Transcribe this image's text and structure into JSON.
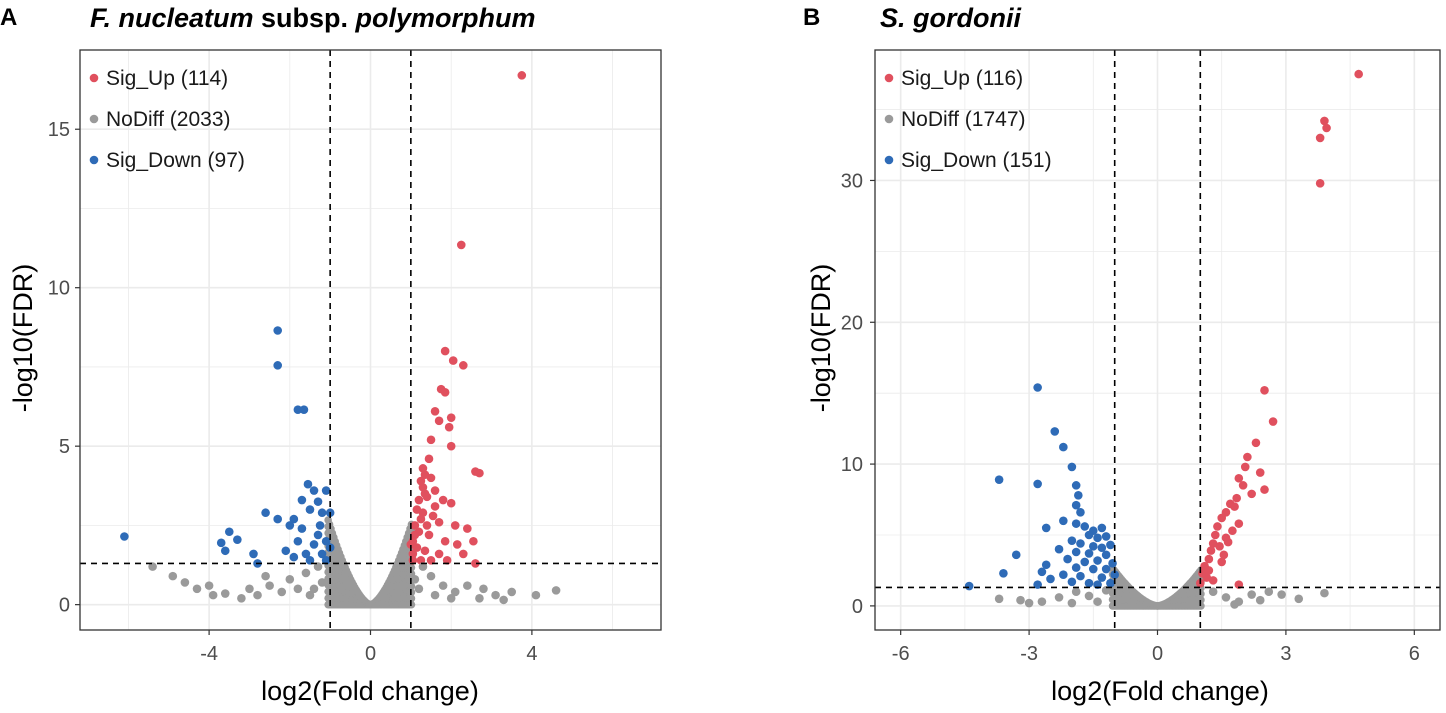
{
  "colors": {
    "up": "#E0505E",
    "nodiff": "#9A9A9A",
    "down": "#2E6BB7",
    "grid": "#EBEBEB"
  },
  "panels": [
    {
      "letter": "A",
      "title_parts": [
        {
          "text": "F. nucleatum",
          "italic": true
        },
        {
          "text": " subsp. ",
          "italic": false
        },
        {
          "text": "polymorphum",
          "italic": true
        }
      ]
    },
    {
      "letter": "B",
      "title_parts": [
        {
          "text": "S. gordonii",
          "italic": true
        }
      ]
    }
  ],
  "chart_data": [
    {
      "type": "scatter",
      "title": "F. nucleatum subsp. polymorphum",
      "xlabel": "log2(Fold change)",
      "ylabel": "-log10(FDR)",
      "xlim": [
        -7.2,
        7.2
      ],
      "ylim": [
        -0.8,
        17.5
      ],
      "xticks": [
        -4,
        0,
        4
      ],
      "yticks": [
        0,
        5,
        10,
        15
      ],
      "x_thresholds": [
        -1,
        1
      ],
      "y_threshold": 1.3,
      "legend": [
        {
          "key": "up",
          "label": "Sig_Up (114)"
        },
        {
          "key": "nodiff",
          "label": "NoDiff (2033)"
        },
        {
          "key": "down",
          "label": "Sig_Down (97)"
        }
      ],
      "series": [
        {
          "name": "Sig_Up",
          "key": "up",
          "points": [
            [
              3.75,
              16.7
            ],
            [
              2.25,
              11.35
            ],
            [
              1.85,
              8.0
            ],
            [
              2.05,
              7.7
            ],
            [
              2.3,
              7.55
            ],
            [
              1.75,
              6.8
            ],
            [
              1.85,
              6.7
            ],
            [
              1.6,
              6.1
            ],
            [
              1.7,
              5.8
            ],
            [
              2.0,
              5.9
            ],
            [
              1.95,
              5.6
            ],
            [
              1.5,
              5.2
            ],
            [
              2.0,
              5.0
            ],
            [
              1.45,
              4.6
            ],
            [
              2.6,
              4.2
            ],
            [
              2.7,
              4.15
            ],
            [
              1.3,
              4.3
            ],
            [
              1.35,
              4.1
            ],
            [
              1.5,
              4.0
            ],
            [
              1.25,
              3.9
            ],
            [
              1.3,
              3.7
            ],
            [
              1.6,
              3.6
            ],
            [
              1.4,
              3.4
            ],
            [
              1.8,
              3.3
            ],
            [
              2.0,
              3.2
            ],
            [
              1.2,
              3.3
            ],
            [
              1.15,
              3.0
            ],
            [
              1.3,
              2.9
            ],
            [
              1.55,
              2.8
            ],
            [
              1.7,
              2.6
            ],
            [
              2.1,
              2.5
            ],
            [
              2.4,
              2.4
            ],
            [
              1.1,
              2.5
            ],
            [
              1.2,
              2.3
            ],
            [
              1.45,
              2.2
            ],
            [
              1.85,
              2.0
            ],
            [
              2.15,
              1.9
            ],
            [
              2.55,
              2.0
            ],
            [
              1.05,
              2.0
            ],
            [
              1.15,
              1.8
            ],
            [
              1.35,
              1.7
            ],
            [
              1.7,
              1.6
            ],
            [
              2.3,
              1.6
            ],
            [
              2.6,
              1.3
            ],
            [
              1.05,
              1.6
            ],
            [
              1.25,
              1.4
            ],
            [
              1.5,
              1.4
            ],
            [
              1.9,
              1.4
            ],
            [
              1.0,
              1.9
            ],
            [
              1.1,
              2.2
            ],
            [
              1.4,
              2.5
            ],
            [
              1.6,
              3.1
            ],
            [
              1.35,
              3.5
            ],
            [
              1.25,
              2.7
            ],
            [
              1.05,
              1.4
            ]
          ]
        },
        {
          "name": "NoDiff",
          "key": "nodiff",
          "points": [
            [
              -5.4,
              1.2
            ],
            [
              -4.9,
              0.9
            ],
            [
              -4.6,
              0.7
            ],
            [
              -4.3,
              0.5
            ],
            [
              -3.9,
              0.3
            ],
            [
              -3.6,
              0.35
            ],
            [
              -3.2,
              0.2
            ],
            [
              -2.8,
              0.3
            ],
            [
              -2.5,
              0.6
            ],
            [
              -2.2,
              0.4
            ],
            [
              -2.0,
              0.8
            ],
            [
              -1.8,
              0.5
            ],
            [
              -1.6,
              1.0
            ],
            [
              -1.5,
              0.3
            ],
            [
              -1.3,
              1.2
            ],
            [
              -1.2,
              0.7
            ],
            [
              -2.6,
              0.9
            ],
            [
              -3.0,
              0.5
            ],
            [
              -4.0,
              0.6
            ],
            [
              -1.4,
              0.5
            ],
            [
              1.3,
              1.2
            ],
            [
              1.5,
              0.9
            ],
            [
              1.8,
              0.6
            ],
            [
              2.1,
              0.4
            ],
            [
              2.4,
              0.6
            ],
            [
              2.8,
              0.5
            ],
            [
              3.1,
              0.3
            ],
            [
              3.5,
              0.4
            ],
            [
              4.1,
              0.3
            ],
            [
              4.6,
              0.45
            ],
            [
              2.7,
              0.2
            ],
            [
              2.0,
              0.2
            ],
            [
              1.6,
              0.3
            ],
            [
              1.2,
              0.5
            ],
            [
              3.3,
              0.15
            ],
            [
              1.1,
              0.8
            ]
          ]
        },
        {
          "name": "Sig_Down",
          "key": "down",
          "points": [
            [
              -6.1,
              2.15
            ],
            [
              -2.3,
              8.65
            ],
            [
              -2.3,
              7.55
            ],
            [
              -1.8,
              6.15
            ],
            [
              -1.65,
              6.15
            ],
            [
              -1.55,
              3.8
            ],
            [
              -1.4,
              3.6
            ],
            [
              -1.1,
              3.6
            ],
            [
              -1.7,
              3.3
            ],
            [
              -1.3,
              3.25
            ],
            [
              -1.5,
              3.0
            ],
            [
              -2.6,
              2.9
            ],
            [
              -2.3,
              2.7
            ],
            [
              -1.9,
              2.7
            ],
            [
              -1.2,
              2.9
            ],
            [
              -1.0,
              2.9
            ],
            [
              -3.5,
              2.3
            ],
            [
              -3.3,
              2.05
            ],
            [
              -3.7,
              1.95
            ],
            [
              -3.6,
              1.7
            ],
            [
              -2.9,
              1.6
            ],
            [
              -1.8,
              2.0
            ],
            [
              -1.4,
              1.9
            ],
            [
              -1.1,
              2.0
            ],
            [
              -2.1,
              1.7
            ],
            [
              -1.6,
              1.6
            ],
            [
              -1.2,
              1.6
            ],
            [
              -1.9,
              1.5
            ],
            [
              -1.5,
              1.4
            ],
            [
              -1.1,
              1.4
            ],
            [
              -2.8,
              1.3
            ],
            [
              -1.3,
              2.2
            ],
            [
              -1.0,
              1.8
            ],
            [
              -1.7,
              2.4
            ],
            [
              -2.0,
              2.5
            ],
            [
              -1.25,
              2.5
            ]
          ]
        }
      ]
    },
    {
      "type": "scatter",
      "title": "S. gordonii",
      "xlabel": "log2(Fold change)",
      "ylabel": "-log10(FDR)",
      "xlim": [
        -6.6,
        6.6
      ],
      "ylim": [
        -1.7,
        39.2
      ],
      "xticks": [
        -6,
        -3,
        0,
        3,
        6
      ],
      "yticks": [
        0,
        10,
        20,
        30
      ],
      "x_thresholds": [
        -1,
        1
      ],
      "y_threshold": 1.3,
      "legend": [
        {
          "key": "up",
          "label": "Sig_Up (116)"
        },
        {
          "key": "nodiff",
          "label": "NoDiff (1747)"
        },
        {
          "key": "down",
          "label": "Sig_Down (151)"
        }
      ],
      "series": [
        {
          "name": "Sig_Up",
          "key": "up",
          "points": [
            [
              4.7,
              37.5
            ],
            [
              3.9,
              34.2
            ],
            [
              3.95,
              33.7
            ],
            [
              3.8,
              33.0
            ],
            [
              3.8,
              29.8
            ],
            [
              2.5,
              15.2
            ],
            [
              2.7,
              13.0
            ],
            [
              2.3,
              11.5
            ],
            [
              2.1,
              10.5
            ],
            [
              2.05,
              9.8
            ],
            [
              2.4,
              9.4
            ],
            [
              1.9,
              9.0
            ],
            [
              2.0,
              8.5
            ],
            [
              2.5,
              8.2
            ],
            [
              2.2,
              7.9
            ],
            [
              1.85,
              7.6
            ],
            [
              1.7,
              7.2
            ],
            [
              1.8,
              7.0
            ],
            [
              1.6,
              6.6
            ],
            [
              1.5,
              6.2
            ],
            [
              1.9,
              5.8
            ],
            [
              1.4,
              5.6
            ],
            [
              1.35,
              5.0
            ],
            [
              1.6,
              4.8
            ],
            [
              1.3,
              4.4
            ],
            [
              1.25,
              3.9
            ],
            [
              1.55,
              3.6
            ],
            [
              1.2,
              3.3
            ],
            [
              1.1,
              2.8
            ],
            [
              1.05,
              2.3
            ],
            [
              1.15,
              2.0
            ],
            [
              1.3,
              1.8
            ],
            [
              1.9,
              1.5
            ],
            [
              1.45,
              4.2
            ],
            [
              1.75,
              5.3
            ],
            [
              1.0,
              1.6
            ],
            [
              1.2,
              2.5
            ],
            [
              1.5,
              3.1
            ],
            [
              1.65,
              4.5
            ]
          ]
        },
        {
          "name": "NoDiff",
          "key": "nodiff",
          "points": [
            [
              -3.7,
              0.5
            ],
            [
              -3.2,
              0.4
            ],
            [
              -2.7,
              0.3
            ],
            [
              -2.3,
              0.6
            ],
            [
              -1.9,
              1.0
            ],
            [
              -1.6,
              0.7
            ],
            [
              -1.4,
              0.3
            ],
            [
              -1.2,
              1.1
            ],
            [
              -2.0,
              0.2
            ],
            [
              -3.0,
              0.2
            ],
            [
              1.3,
              1.0
            ],
            [
              1.6,
              0.6
            ],
            [
              1.9,
              0.3
            ],
            [
              2.2,
              0.8
            ],
            [
              2.6,
              1.0
            ],
            [
              2.9,
              0.8
            ],
            [
              3.3,
              0.5
            ],
            [
              3.9,
              0.9
            ],
            [
              1.8,
              0.1
            ],
            [
              2.4,
              0.4
            ]
          ]
        },
        {
          "name": "Sig_Down",
          "key": "down",
          "points": [
            [
              -2.8,
              15.4
            ],
            [
              -2.4,
              12.3
            ],
            [
              -2.2,
              11.2
            ],
            [
              -2.0,
              9.8
            ],
            [
              -3.7,
              8.9
            ],
            [
              -2.8,
              8.6
            ],
            [
              -1.9,
              8.5
            ],
            [
              -1.85,
              7.8
            ],
            [
              -1.9,
              7.1
            ],
            [
              -1.8,
              6.6
            ],
            [
              -2.2,
              6.0
            ],
            [
              -2.6,
              5.5
            ],
            [
              -1.9,
              5.8
            ],
            [
              -1.7,
              5.6
            ],
            [
              -1.5,
              5.3
            ],
            [
              -1.3,
              5.5
            ],
            [
              -1.6,
              5.0
            ],
            [
              -1.4,
              4.8
            ],
            [
              -1.2,
              4.9
            ],
            [
              -2.0,
              4.6
            ],
            [
              -1.8,
              4.4
            ],
            [
              -1.5,
              4.2
            ],
            [
              -1.3,
              4.1
            ],
            [
              -1.1,
              4.3
            ],
            [
              -2.3,
              4.0
            ],
            [
              -1.9,
              3.8
            ],
            [
              -1.6,
              3.7
            ],
            [
              -1.2,
              3.6
            ],
            [
              -3.3,
              3.6
            ],
            [
              -2.1,
              3.3
            ],
            [
              -1.7,
              3.1
            ],
            [
              -1.4,
              3.2
            ],
            [
              -1.05,
              3.0
            ],
            [
              -2.6,
              2.9
            ],
            [
              -1.9,
              2.7
            ],
            [
              -1.5,
              2.6
            ],
            [
              -1.2,
              2.6
            ],
            [
              -2.7,
              2.4
            ],
            [
              -3.6,
              2.3
            ],
            [
              -2.2,
              2.2
            ],
            [
              -1.8,
              2.1
            ],
            [
              -1.3,
              2.0
            ],
            [
              -1.0,
              2.2
            ],
            [
              -2.5,
              1.9
            ],
            [
              -2.0,
              1.7
            ],
            [
              -1.6,
              1.6
            ],
            [
              -4.4,
              1.4
            ],
            [
              -2.8,
              1.5
            ],
            [
              -1.1,
              1.6
            ],
            [
              -1.4,
              1.5
            ]
          ]
        }
      ]
    }
  ]
}
